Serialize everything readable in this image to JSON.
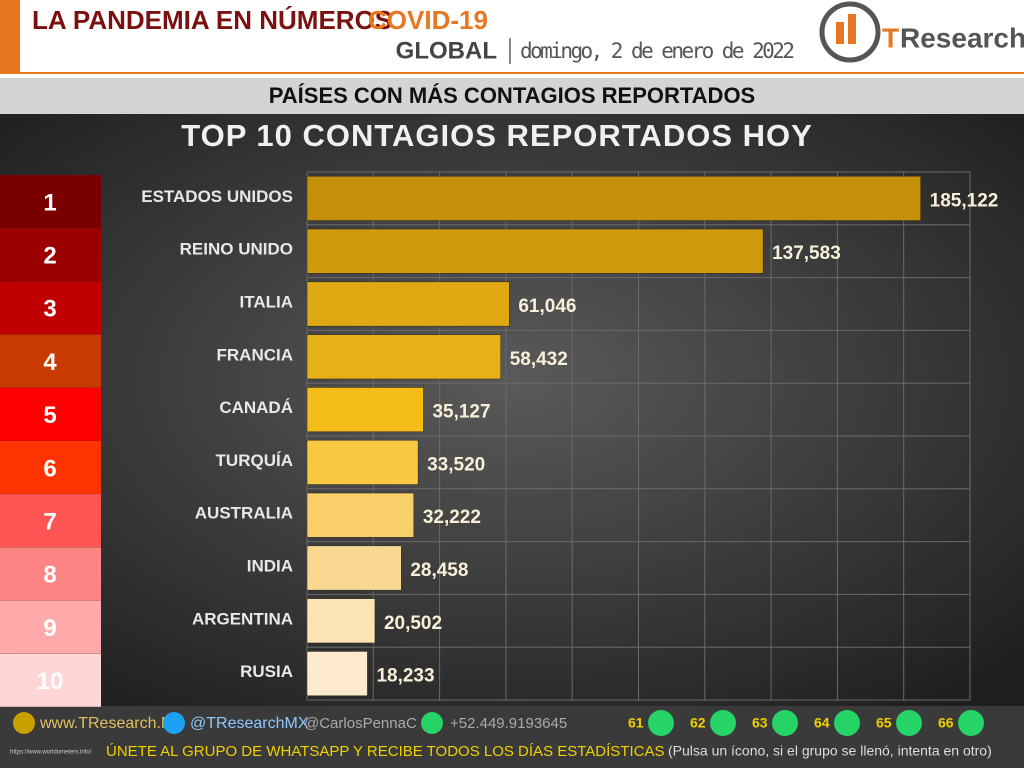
{
  "header": {
    "title": "LA PANDEMIA EN NÚMEROS",
    "topic": "COVID-19",
    "scope": "GLOBAL",
    "date": "domingo, 2 de enero de 2022",
    "logo_t": "T",
    "logo_rest": "Research"
  },
  "subtitle": "PAÍSES CON MÁS CONTAGIOS REPORTADOS",
  "ranks": [
    1,
    2,
    3,
    4,
    5,
    6,
    7,
    8,
    9,
    10
  ],
  "rank_colors": [
    "#7a0000",
    "#9a0000",
    "#c00000",
    "#c83a00",
    "#ff0000",
    "#ff3300",
    "#ff5555",
    "#ff8585",
    "#ffaaaa",
    "#ffd5d5"
  ],
  "chart_data": {
    "type": "bar",
    "orientation": "horizontal",
    "title": "TOP 10 CONTAGIOS REPORTADOS HOY",
    "categories": [
      "ESTADOS UNIDOS",
      "REINO UNIDO",
      "ITALIA",
      "FRANCIA",
      "CANADÁ",
      "TURQUÍA",
      "AUSTRALIA",
      "INDIA",
      "ARGENTINA",
      "RUSIA"
    ],
    "values": [
      185122,
      137583,
      61046,
      58432,
      35127,
      33520,
      32222,
      28458,
      20502,
      18233
    ],
    "value_labels": [
      "185,122",
      "137,583",
      "61,046",
      "58,432",
      "35,127",
      "33,520",
      "32,222",
      "28,458",
      "20,502",
      "18,233"
    ],
    "colors": [
      "#c4900a",
      "#cf9a0c",
      "#e0a812",
      "#e8b018",
      "#f5bd18",
      "#f8c840",
      "#f8cf68",
      "#f8d890",
      "#fbe3b4",
      "#fde9cc"
    ],
    "xlim": [
      0,
      200000
    ],
    "xticks": [
      0,
      20000,
      40000,
      60000,
      80000,
      100000,
      120000,
      140000,
      160000,
      180000,
      200000
    ],
    "grid": true
  },
  "footer": {
    "web": "www.TResearch.Mx",
    "twitter": "@TResearchMX",
    "twitter2": "@CarlosPennaC",
    "phone": "+52.449.9193645",
    "groups": [
      61,
      62,
      63,
      64,
      65,
      66
    ],
    "cta": "ÚNETE AL GRUPO DE WHATSAPP Y RECIBE TODOS LOS DÍAS ESTADÍSTICAS",
    "cta_note": "(Pulsa un ícono, si el grupo se llenó, intenta en otro)",
    "source": "https://www.worldometers.info/"
  }
}
